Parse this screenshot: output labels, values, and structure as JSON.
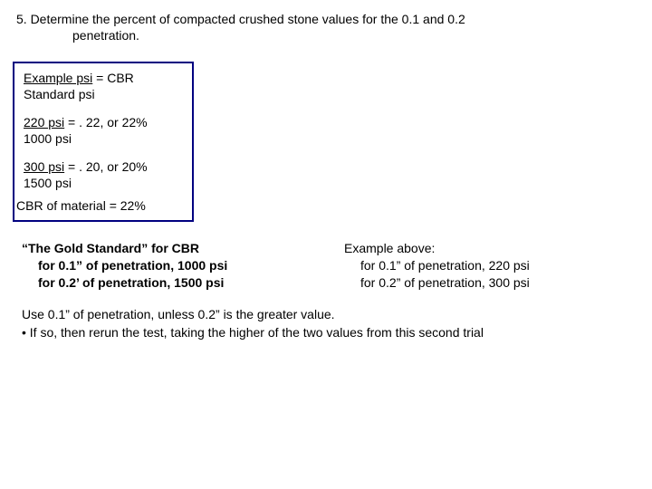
{
  "heading_line1": "5. Determine the percent of compacted crushed stone values for the 0.1 and 0.2",
  "heading_line2": "penetration.",
  "box": {
    "row1_top": "Example psi",
    "row1_eq": " = CBR",
    "row1_bottom": "Standard psi",
    "row2_top": "220 psi",
    "row2_eq": " = . 22, or 22%",
    "row2_bottom": "1000 psi",
    "row3_top": "300 psi",
    "row3_eq": " = . 20, or 20%",
    "row3_bottom": "1500 psi",
    "cbr_line": "CBR of material = 22%"
  },
  "gold": {
    "l1": "“The Gold Standard” for CBR",
    "l2": "for 0.1” of penetration, 1000 psi",
    "l3": "for 0.2’ of penetration, 1500 psi"
  },
  "example": {
    "l1": "Example above:",
    "l2": "for 0.1” of penetration, 220 psi",
    "l3": "for 0.2” of penetration, 300 psi"
  },
  "note": {
    "l1": "Use 0.1” of penetration, unless 0.2” is the greater value.",
    "l2": "• If so, then rerun the test, taking the higher of the two values from this second trial"
  }
}
